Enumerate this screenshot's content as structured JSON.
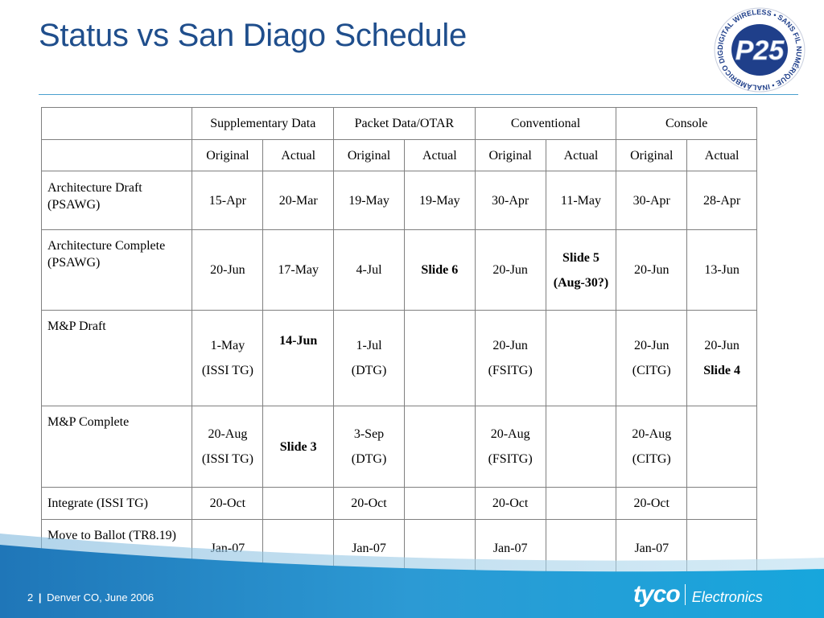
{
  "title": "Status vs San Diago Schedule",
  "colors": {
    "title": "#1f4e8c",
    "rule": "#4a9fcf",
    "footer": "#1b95d2"
  },
  "logo": {
    "mark": "P25",
    "ring_text": "DIGITAL WIRELESS • SANS FIL NUMÉRIQUE • INALÁMBRICO DIGITAL •"
  },
  "table": {
    "groups": [
      "Supplementary Data",
      "Packet Data/OTAR",
      "Conventional",
      "Console"
    ],
    "subheaders": [
      "Original",
      "Actual",
      "Original",
      "Actual",
      "Original",
      "Actual",
      "Original",
      "Actual"
    ],
    "rows": [
      {
        "label": "Architecture Draft (PSAWG)",
        "cells": [
          "15-Apr",
          "20-Mar",
          "19-May",
          "19-May",
          "30-Apr",
          "11-May",
          "30-Apr",
          "28-Apr"
        ]
      },
      {
        "label": "Architecture Complete (PSAWG)",
        "cells": [
          "20-Jun",
          "17-May",
          "4-Jul",
          "Slide 6",
          "20-Jun",
          "Slide 5",
          "20-Jun",
          "13-Jun"
        ],
        "cell6_extra": "(Aug-30?)"
      },
      {
        "label": "M&P Draft",
        "cells": [
          "1-May",
          "14-Jun",
          "1-Jul",
          "",
          "20-Jun",
          "",
          "20-Jun",
          "20-Jun"
        ],
        "notes": [
          "(ISSI TG)",
          "(DTG)",
          "(FSITG)",
          "(CITG)",
          "Slide 4"
        ]
      },
      {
        "label": "M&P Complete",
        "cells": [
          "20-Aug",
          "Slide 3",
          "3-Sep",
          "",
          "20-Aug",
          "",
          "20-Aug",
          ""
        ],
        "notes": [
          "(ISSI TG)",
          "(DTG)",
          "(FSITG)",
          "(CITG)"
        ]
      },
      {
        "label": "Integrate (ISSI TG)",
        "cells": [
          "20-Oct",
          "",
          "20-Oct",
          "",
          "20-Oct",
          "",
          "20-Oct",
          ""
        ]
      },
      {
        "label": "Move to Ballot (TR8.19)",
        "cells": [
          "Jan-07",
          "",
          "Jan-07",
          "",
          "Jan-07",
          "",
          "Jan-07",
          ""
        ]
      }
    ]
  },
  "footer": {
    "page": "2",
    "separator": "|",
    "event": "Denver CO, June 2006"
  },
  "brand": {
    "name": "tyco",
    "division": "Electronics"
  }
}
